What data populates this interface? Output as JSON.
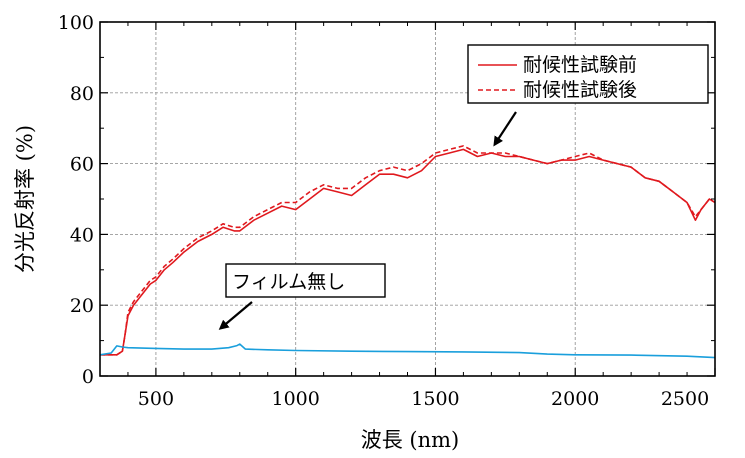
{
  "chart_data": {
    "type": "line",
    "xlabel": "波長 (nm)",
    "ylabel": "分光反射率 (%)",
    "xlim": [
      300,
      2500
    ],
    "ylim": [
      0,
      100
    ],
    "xticks": [
      500,
      1000,
      1500,
      2000,
      2500
    ],
    "yticks": [
      0,
      20,
      40,
      60,
      80,
      100
    ],
    "grid": true,
    "legend_position": "top-right",
    "colors": {
      "red": "#e0191e",
      "blue": "#1a9fdc"
    },
    "series": [
      {
        "name": "耐候性試験前",
        "style": "solid",
        "color": "#e0191e",
        "x": [
          300,
          360,
          380,
          390,
          400,
          420,
          450,
          480,
          500,
          530,
          560,
          600,
          650,
          700,
          740,
          780,
          800,
          850,
          900,
          950,
          1000,
          1050,
          1100,
          1150,
          1200,
          1250,
          1300,
          1350,
          1400,
          1450,
          1500,
          1550,
          1600,
          1650,
          1700,
          1750,
          1800,
          1850,
          1900,
          1950,
          2000,
          2050,
          2100,
          2150,
          2200,
          2250,
          2300,
          2350,
          2400,
          2430,
          2450,
          2480,
          2500
        ],
        "y": [
          6,
          6,
          7,
          12,
          17,
          20,
          23,
          26,
          27,
          30,
          32,
          35,
          38,
          40,
          42,
          41,
          41,
          44,
          46,
          48,
          47,
          50,
          53,
          52,
          51,
          54,
          57,
          57,
          56,
          58,
          62,
          63,
          64,
          62,
          63,
          62,
          62,
          61,
          60,
          61,
          61,
          62,
          61,
          60,
          59,
          56,
          55,
          52,
          49,
          44,
          47,
          50,
          49
        ]
      },
      {
        "name": "耐候性試験後",
        "style": "dashed",
        "color": "#e0191e",
        "x": [
          300,
          360,
          380,
          390,
          400,
          420,
          450,
          480,
          500,
          530,
          560,
          600,
          650,
          700,
          740,
          780,
          800,
          850,
          900,
          950,
          1000,
          1050,
          1100,
          1150,
          1200,
          1250,
          1300,
          1350,
          1400,
          1450,
          1500,
          1550,
          1600,
          1650,
          1700,
          1750,
          1800,
          1850,
          1900,
          1950,
          2000,
          2050,
          2100,
          2150,
          2200,
          2250,
          2300,
          2350,
          2400,
          2430,
          2450,
          2480,
          2500
        ],
        "y": [
          6,
          6,
          7,
          12,
          18,
          21,
          24,
          27,
          28,
          31,
          33,
          36,
          39,
          41,
          43,
          42,
          42,
          45,
          47,
          49,
          49,
          52,
          54,
          53,
          53,
          56,
          58,
          59,
          58,
          60,
          63,
          64,
          65,
          63,
          63,
          63,
          62,
          61,
          60,
          61,
          62,
          63,
          61,
          60,
          59,
          56,
          55,
          52,
          49,
          45,
          47,
          50,
          49
        ]
      },
      {
        "name": "フィルム無し",
        "style": "solid",
        "color": "#1a9fdc",
        "x": [
          300,
          340,
          360,
          380,
          400,
          500,
          600,
          700,
          760,
          790,
          800,
          820,
          900,
          1000,
          1200,
          1400,
          1600,
          1800,
          1900,
          2000,
          2200,
          2400,
          2500
        ],
        "y": [
          6,
          6.5,
          8.5,
          8.2,
          8,
          7.8,
          7.6,
          7.6,
          8,
          8.6,
          9,
          7.6,
          7.4,
          7.2,
          7,
          6.9,
          6.8,
          6.6,
          6.2,
          6,
          5.9,
          5.6,
          5.2
        ]
      }
    ]
  },
  "legend": {
    "entries": [
      {
        "label": "耐候性試験前",
        "style": "solid"
      },
      {
        "label": "耐候性試験後",
        "style": "dashed"
      }
    ]
  },
  "annotation": {
    "label": "フィルム無し"
  }
}
